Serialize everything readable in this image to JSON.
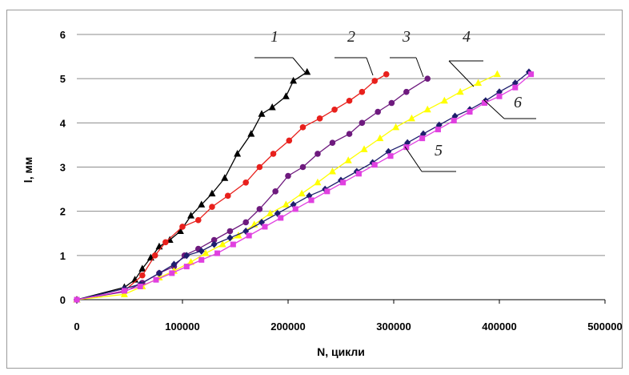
{
  "chart_data": {
    "type": "line",
    "title": "",
    "xlabel": "N, цикли",
    "ylabel": "l, мм",
    "xlim": [
      0,
      500000
    ],
    "ylim": [
      0,
      6
    ],
    "x_ticks": [
      "0",
      "100000",
      "200000",
      "300000",
      "400000",
      "500000"
    ],
    "y_ticks": [
      "0",
      "1",
      "2",
      "3",
      "4",
      "5",
      "6"
    ],
    "grid": "horizontal",
    "legend": "none",
    "series": [
      {
        "id": "1",
        "label": "1",
        "color": "#000000",
        "marker": "triangle",
        "points": [
          [
            0,
            0
          ],
          [
            45000,
            0.28
          ],
          [
            55000,
            0.45
          ],
          [
            62000,
            0.7
          ],
          [
            70000,
            0.95
          ],
          [
            78000,
            1.2
          ],
          [
            88000,
            1.35
          ],
          [
            98000,
            1.55
          ],
          [
            108000,
            1.9
          ],
          [
            118000,
            2.15
          ],
          [
            128000,
            2.4
          ],
          [
            140000,
            2.75
          ],
          [
            152000,
            3.3
          ],
          [
            165000,
            3.75
          ],
          [
            175000,
            4.2
          ],
          [
            185000,
            4.35
          ],
          [
            198000,
            4.6
          ],
          [
            205000,
            4.95
          ],
          [
            218000,
            5.15
          ]
        ]
      },
      {
        "id": "2",
        "label": "2",
        "color": "#e8201c",
        "marker": "circle",
        "points": [
          [
            0,
            0
          ],
          [
            45000,
            0.2
          ],
          [
            62000,
            0.55
          ],
          [
            74000,
            1.0
          ],
          [
            84000,
            1.3
          ],
          [
            100000,
            1.65
          ],
          [
            115000,
            1.8
          ],
          [
            128000,
            2.1
          ],
          [
            143000,
            2.35
          ],
          [
            160000,
            2.65
          ],
          [
            173000,
            3.0
          ],
          [
            186000,
            3.3
          ],
          [
            201000,
            3.6
          ],
          [
            214000,
            3.9
          ],
          [
            230000,
            4.1
          ],
          [
            244000,
            4.3
          ],
          [
            258000,
            4.5
          ],
          [
            270000,
            4.7
          ],
          [
            282000,
            4.95
          ],
          [
            293000,
            5.1
          ]
        ]
      },
      {
        "id": "3",
        "label": "3",
        "color": "#6e1a7e",
        "marker": "circle",
        "points": [
          [
            0,
            0
          ],
          [
            45000,
            0.18
          ],
          [
            62000,
            0.38
          ],
          [
            78000,
            0.6
          ],
          [
            92000,
            0.75
          ],
          [
            102000,
            1.0
          ],
          [
            115000,
            1.15
          ],
          [
            130000,
            1.35
          ],
          [
            145000,
            1.55
          ],
          [
            160000,
            1.75
          ],
          [
            173000,
            2.05
          ],
          [
            188000,
            2.45
          ],
          [
            200000,
            2.8
          ],
          [
            214000,
            3.0
          ],
          [
            228000,
            3.3
          ],
          [
            242000,
            3.55
          ],
          [
            258000,
            3.75
          ],
          [
            270000,
            4.0
          ],
          [
            285000,
            4.25
          ],
          [
            298000,
            4.45
          ],
          [
            312000,
            4.7
          ],
          [
            332000,
            5.0
          ]
        ]
      },
      {
        "id": "4",
        "label": "4",
        "color": "#ffff00",
        "marker": "triangle",
        "points": [
          [
            0,
            0
          ],
          [
            45000,
            0.12
          ],
          [
            62000,
            0.3
          ],
          [
            78000,
            0.5
          ],
          [
            92000,
            0.65
          ],
          [
            108000,
            0.85
          ],
          [
            122000,
            1.05
          ],
          [
            138000,
            1.25
          ],
          [
            153000,
            1.45
          ],
          [
            168000,
            1.7
          ],
          [
            183000,
            1.95
          ],
          [
            198000,
            2.15
          ],
          [
            213000,
            2.4
          ],
          [
            228000,
            2.65
          ],
          [
            242000,
            2.9
          ],
          [
            257000,
            3.15
          ],
          [
            272000,
            3.4
          ],
          [
            287000,
            3.65
          ],
          [
            302000,
            3.9
          ],
          [
            317000,
            4.1
          ],
          [
            332000,
            4.3
          ],
          [
            348000,
            4.5
          ],
          [
            363000,
            4.7
          ],
          [
            380000,
            4.9
          ],
          [
            398000,
            5.1
          ]
        ]
      },
      {
        "id": "5",
        "label": "5",
        "color": "#1e1e6e",
        "marker": "diamond",
        "points": [
          [
            0,
            0
          ],
          [
            45000,
            0.25
          ],
          [
            60000,
            0.35
          ],
          [
            78000,
            0.6
          ],
          [
            92000,
            0.8
          ],
          [
            104000,
            1.0
          ],
          [
            118000,
            1.1
          ],
          [
            130000,
            1.25
          ],
          [
            145000,
            1.4
          ],
          [
            160000,
            1.55
          ],
          [
            175000,
            1.75
          ],
          [
            190000,
            1.95
          ],
          [
            205000,
            2.15
          ],
          [
            220000,
            2.35
          ],
          [
            235000,
            2.5
          ],
          [
            250000,
            2.7
          ],
          [
            265000,
            2.9
          ],
          [
            280000,
            3.1
          ],
          [
            295000,
            3.35
          ],
          [
            313000,
            3.55
          ],
          [
            328000,
            3.75
          ],
          [
            343000,
            3.95
          ],
          [
            358000,
            4.15
          ],
          [
            372000,
            4.3
          ],
          [
            387000,
            4.5
          ],
          [
            400000,
            4.7
          ],
          [
            415000,
            4.9
          ],
          [
            428000,
            5.15
          ]
        ]
      },
      {
        "id": "6",
        "label": "6",
        "color": "#e040e0",
        "marker": "square",
        "points": [
          [
            0,
            0
          ],
          [
            45000,
            0.2
          ],
          [
            60000,
            0.3
          ],
          [
            75000,
            0.45
          ],
          [
            90000,
            0.6
          ],
          [
            104000,
            0.75
          ],
          [
            118000,
            0.9
          ],
          [
            133000,
            1.05
          ],
          [
            148000,
            1.25
          ],
          [
            163000,
            1.45
          ],
          [
            178000,
            1.65
          ],
          [
            193000,
            1.85
          ],
          [
            207000,
            2.05
          ],
          [
            222000,
            2.25
          ],
          [
            237000,
            2.45
          ],
          [
            252000,
            2.65
          ],
          [
            267000,
            2.85
          ],
          [
            282000,
            3.05
          ],
          [
            297000,
            3.25
          ],
          [
            312000,
            3.45
          ],
          [
            327000,
            3.65
          ],
          [
            342000,
            3.85
          ],
          [
            357000,
            4.05
          ],
          [
            372000,
            4.25
          ],
          [
            386000,
            4.45
          ],
          [
            400000,
            4.6
          ],
          [
            415000,
            4.8
          ],
          [
            430000,
            5.1
          ]
        ]
      }
    ]
  }
}
